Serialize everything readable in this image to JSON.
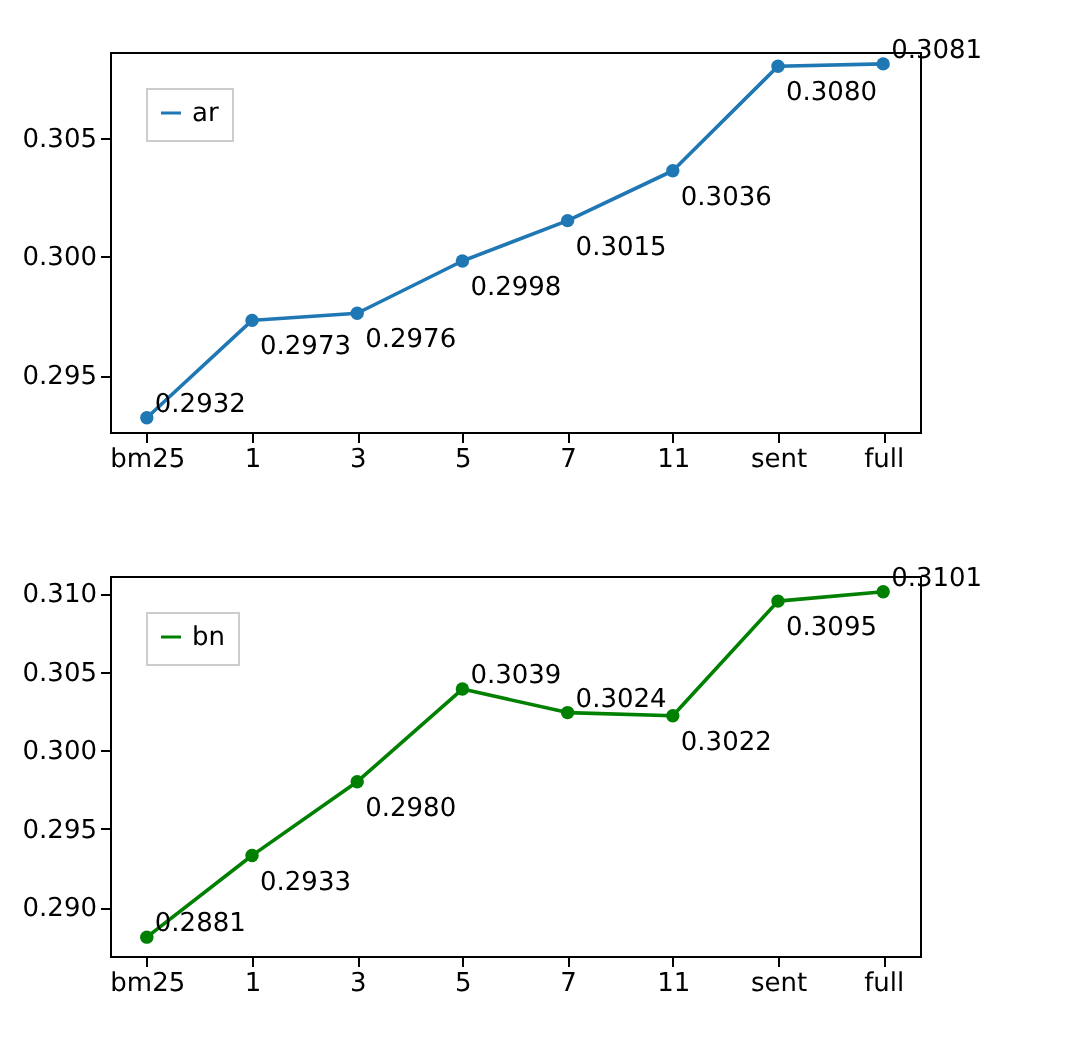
{
  "chart_data": [
    {
      "type": "line",
      "categories": [
        "bm25",
        "1",
        "3",
        "5",
        "7",
        "11",
        "sent",
        "full"
      ],
      "series": [
        {
          "name": "ar",
          "color": "#1f77b4",
          "values": [
            0.2932,
            0.2973,
            0.2976,
            0.2998,
            0.3015,
            0.3036,
            0.308,
            0.3081
          ],
          "value_labels": [
            "0.2932",
            "0.2973",
            "0.2976",
            "0.2998",
            "0.3015",
            "0.3036",
            "0.3080",
            "0.3081"
          ]
        }
      ],
      "ylim": [
        0.2926,
        0.3086
      ],
      "yticks": [
        {
          "value": 0.295,
          "label": "0.295"
        },
        {
          "value": 0.3,
          "label": "0.300"
        },
        {
          "value": 0.305,
          "label": "0.305"
        }
      ],
      "legend": "top left",
      "marker": "circle"
    },
    {
      "type": "line",
      "categories": [
        "bm25",
        "1",
        "3",
        "5",
        "7",
        "11",
        "sent",
        "full"
      ],
      "series": [
        {
          "name": "bn",
          "color": "#008000",
          "values": [
            0.2881,
            0.2933,
            0.298,
            0.3039,
            0.3024,
            0.3022,
            0.3095,
            0.3101
          ],
          "value_labels": [
            "0.2881",
            "0.2933",
            "0.2980",
            "0.3039",
            "0.3024",
            "0.3022",
            "0.3095",
            "0.3101"
          ]
        }
      ],
      "ylim": [
        0.2869,
        0.3111
      ],
      "yticks": [
        {
          "value": 0.29,
          "label": "0.290"
        },
        {
          "value": 0.295,
          "label": "0.295"
        },
        {
          "value": 0.3,
          "label": "0.300"
        },
        {
          "value": 0.305,
          "label": "0.305"
        },
        {
          "value": 0.31,
          "label": "0.310"
        }
      ],
      "legend": "top left",
      "marker": "circle"
    }
  ]
}
